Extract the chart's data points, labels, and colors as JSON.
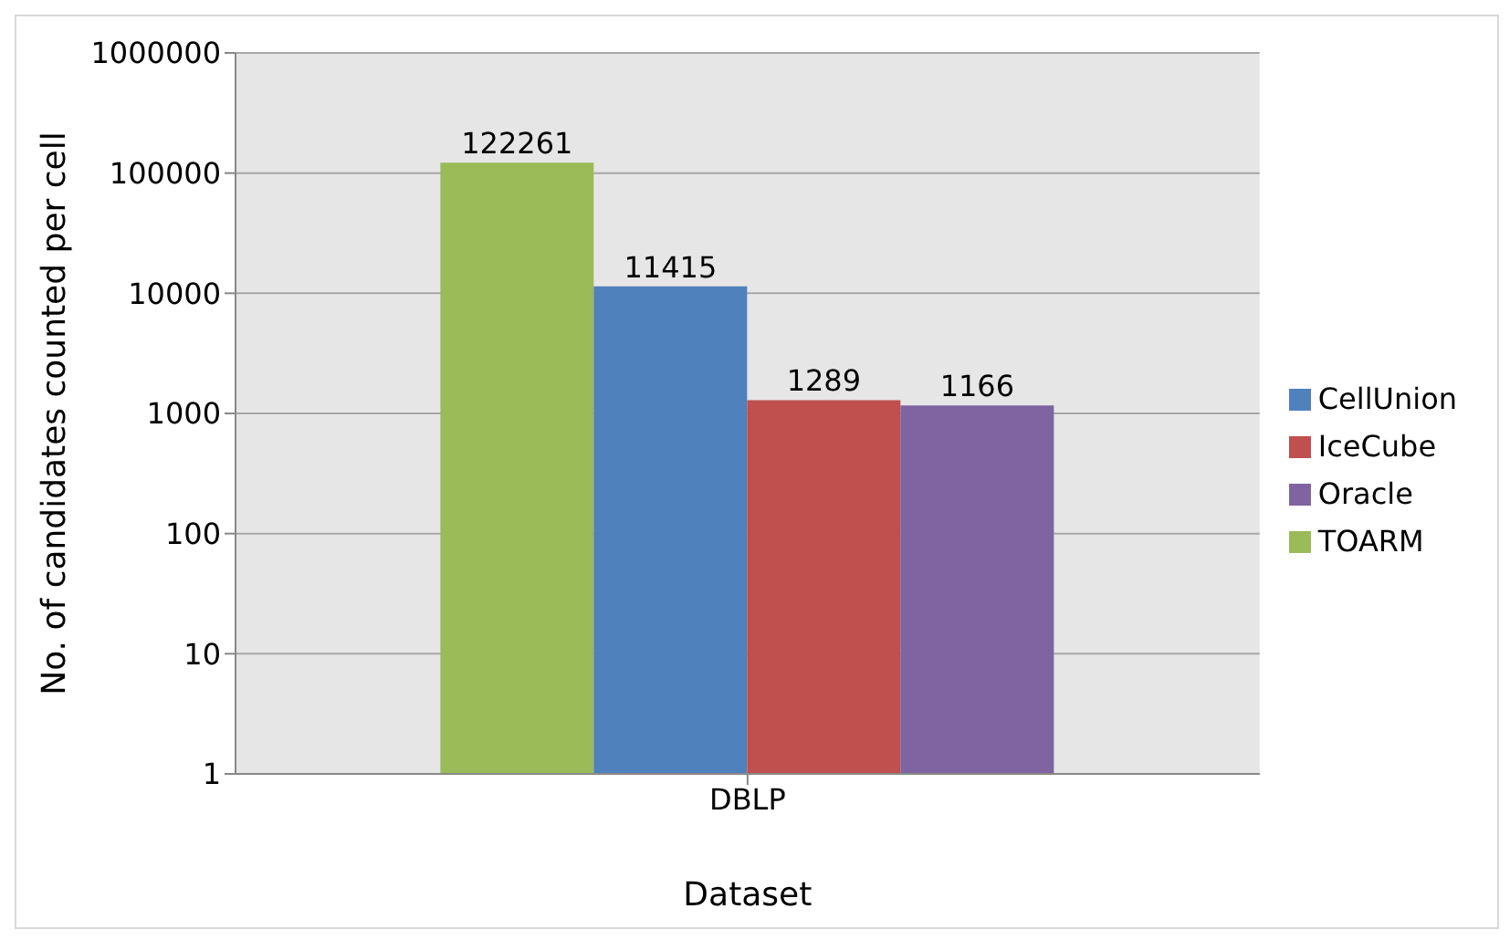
{
  "chart_data": {
    "type": "bar",
    "categories": [
      "DBLP"
    ],
    "xlabel": "Dataset",
    "ylabel": "No. of candidates counted per cell",
    "log": "y",
    "ylim": [
      1,
      1000000
    ],
    "yticks": [
      1,
      10,
      100,
      1000,
      10000,
      100000,
      1000000
    ],
    "grid": "y",
    "legend": "right",
    "data_labels": true,
    "series": [
      {
        "name": "TOARM",
        "color": "#9bbb59",
        "values": [
          122261
        ]
      },
      {
        "name": "CellUnion",
        "color": "#4f81bd",
        "values": [
          11415
        ]
      },
      {
        "name": "IceCube",
        "color": "#c0504d",
        "values": [
          1289
        ]
      },
      {
        "name": "Oracle",
        "color": "#8064a2",
        "values": [
          1166
        ]
      }
    ]
  }
}
